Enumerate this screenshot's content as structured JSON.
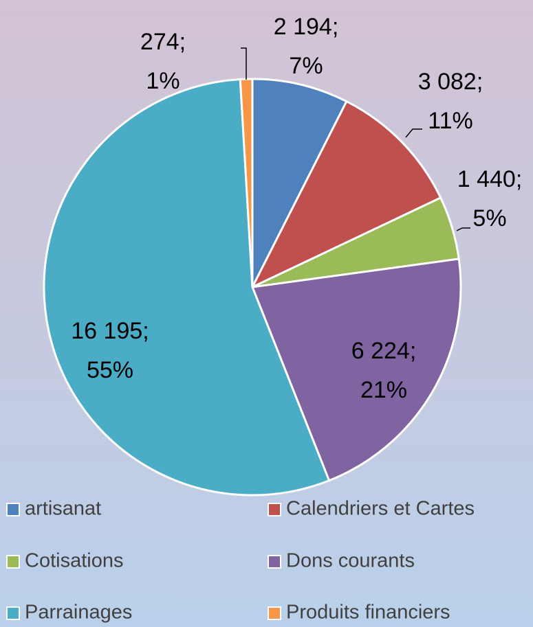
{
  "chart_data": {
    "type": "pie",
    "categories": [
      "artisanat",
      "Calendriers  et Cartes",
      "Cotisations",
      "Dons courants",
      "Parrainages",
      "Produits financiers"
    ],
    "values": [
      2194,
      3082,
      1440,
      6224,
      16195,
      274
    ],
    "value_labels": [
      "2 194; 7%",
      "3 082; 11%",
      "1 440; 5%",
      "6 224; 21%",
      "16 195; 55%",
      "274; 1%"
    ],
    "colors": [
      "#4f81bd",
      "#c0504d",
      "#9bbb59",
      "#8064a2",
      "#4bacc6",
      "#f79646"
    ],
    "legend": "bottom"
  }
}
